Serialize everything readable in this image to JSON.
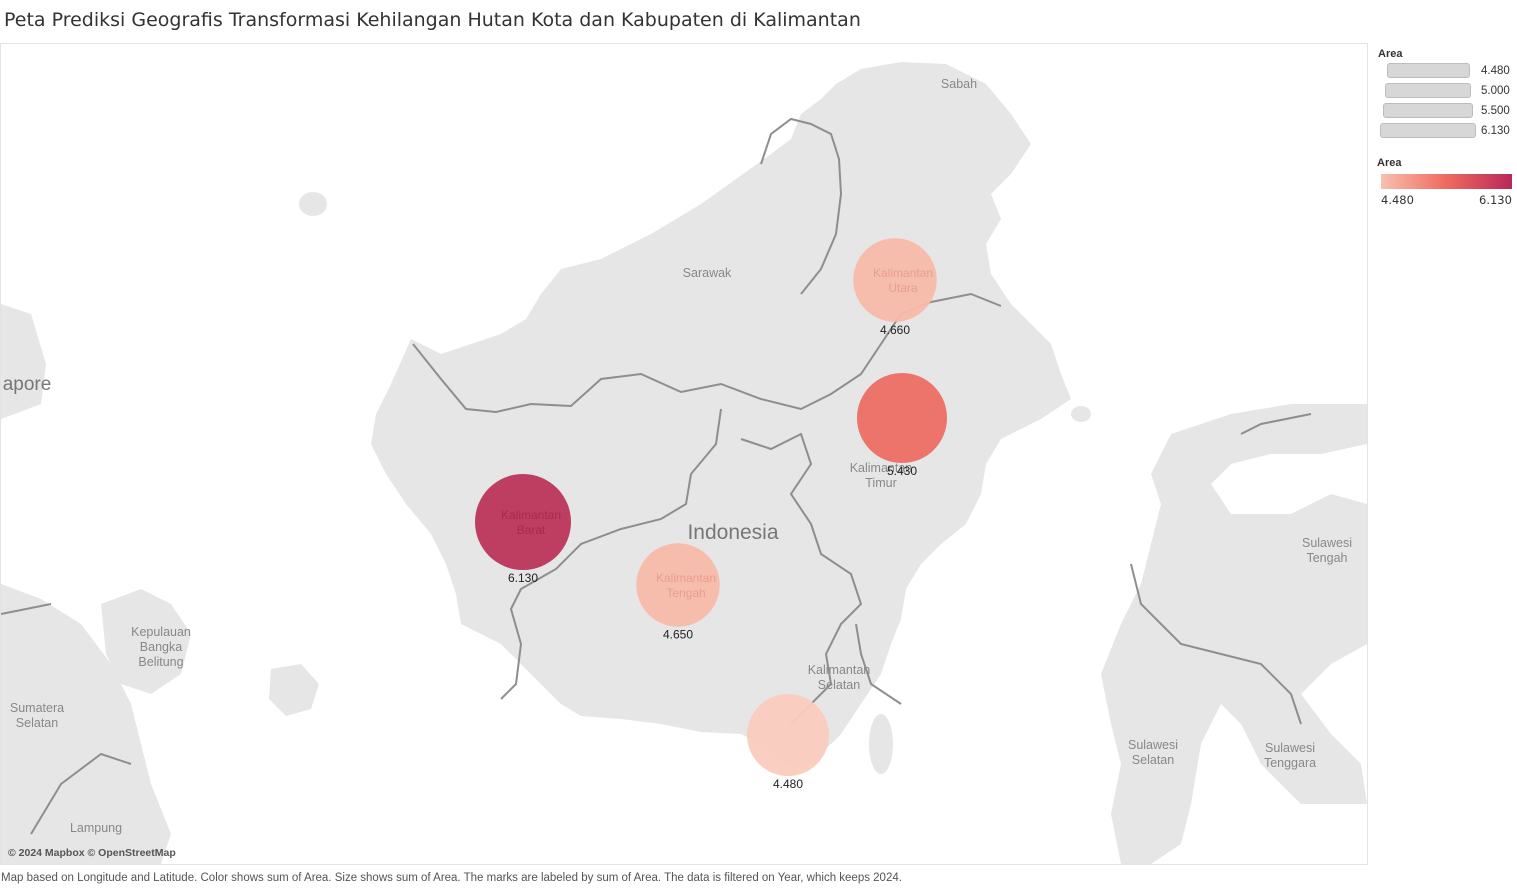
{
  "title": "Peta Prediksi Geografis Transformasi Kehilangan Hutan Kota dan Kabupaten di Kalimantan",
  "footer": "Map based on Longitude and Latitude.  Color shows sum of Area.  Size shows sum of Area.  The marks are labeled by sum of Area. The data is filtered on Year, which keeps 2024.",
  "attribution": "© 2024 Mapbox © OpenStreetMap",
  "colors": {
    "low": "#f8c0b0",
    "mid": "#ee6a5e",
    "high": "#b8285a",
    "land": "#e6e6e6",
    "sea": "#ffffff",
    "border": "#8a8a8a"
  },
  "map_labels": {
    "sabah": "Sabah",
    "sarawak": "Sarawak",
    "singapore": "apore",
    "indonesia": "Indonesia",
    "kaltim": [
      "Kalimantan",
      "Timur"
    ],
    "kalsel": [
      "Kalimantan",
      "Selatan"
    ],
    "bangka": [
      "Kepulauan",
      "Bangka",
      "Belitung"
    ],
    "sumsel": [
      "Sumatera",
      "Selatan"
    ],
    "lampung": "Lampung",
    "sulteng": [
      "Sulawesi",
      "Tengah"
    ],
    "sulsel": [
      "Sulawesi",
      "Selatan"
    ],
    "sultra": [
      "Sulawesi",
      "Tenggara"
    ]
  },
  "marks": [
    {
      "name": [
        "Kalimantan",
        "Utara"
      ],
      "value": 4.66,
      "label": "4.660",
      "color": "#f8bba9"
    },
    {
      "name": [
        "Kalimantan",
        "Timur"
      ],
      "value": 5.43,
      "label": "5.430",
      "color": "#ec6e63"
    },
    {
      "name": [
        "Kalimantan",
        "Barat"
      ],
      "value": 6.13,
      "label": "6.130",
      "color": "#bb3558"
    },
    {
      "name": [
        "Kalimantan",
        "Tengah"
      ],
      "value": 4.65,
      "label": "4.650",
      "color": "#f8bba9"
    },
    {
      "name": [
        "Kalimantan",
        "Selatan"
      ],
      "value": 4.48,
      "label": "4.480",
      "color": "#fbcbbf"
    }
  ],
  "legend": {
    "size_title": "Area",
    "size_items": [
      "4.480",
      "5.000",
      "5.500",
      "6.130"
    ],
    "color_title": "Area",
    "color_min": "4.480",
    "color_max": "6.130"
  }
}
